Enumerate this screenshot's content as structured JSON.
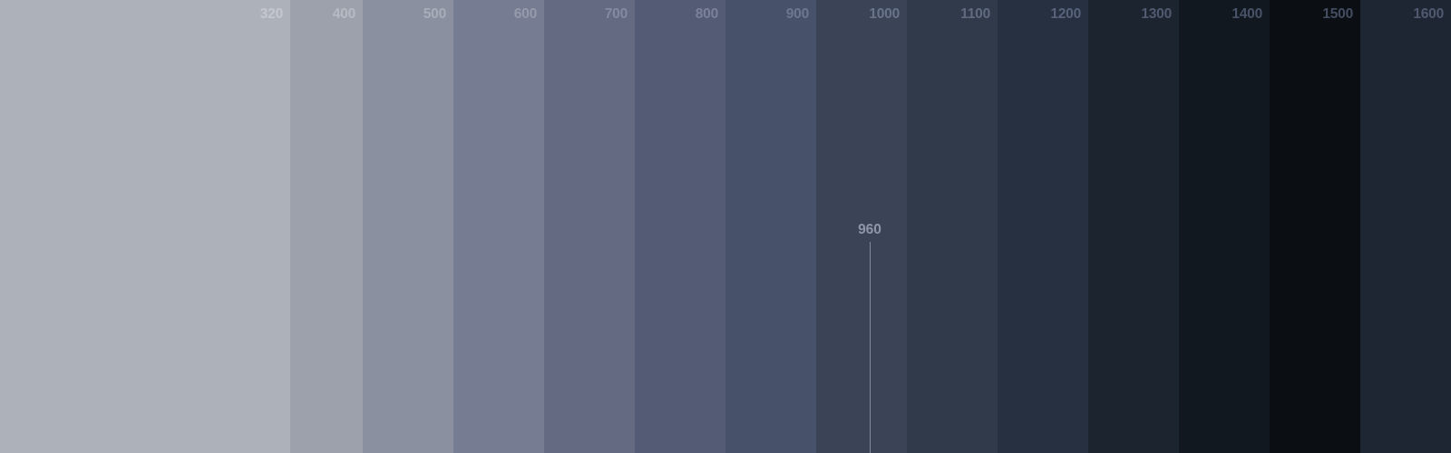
{
  "breakpoints": [
    {
      "label": "320",
      "color": "#adb1b9",
      "label_color": "#c4c7ce"
    },
    {
      "label": "400",
      "color": "#9ca1ac",
      "label_color": "#b6bac3"
    },
    {
      "label": "500",
      "color": "#8a90a0",
      "label_color": "#a8adb9"
    },
    {
      "label": "600",
      "color": "#767c91",
      "label_color": "#959bab"
    },
    {
      "label": "700",
      "color": "#636a82",
      "label_color": "#848aa0"
    },
    {
      "label": "800",
      "color": "#545b74",
      "label_color": "#7a8198"
    },
    {
      "label": "900",
      "color": "#475169",
      "label_color": "#6e7790"
    },
    {
      "label": "1000",
      "color": "#3b4457",
      "label_color": "#69738a"
    },
    {
      "label": "1100",
      "color": "#313a4b",
      "label_color": "#616b80"
    },
    {
      "label": "1200",
      "color": "#263040",
      "label_color": "#58627a"
    },
    {
      "label": "1300",
      "color": "#1c2430",
      "label_color": "#505a70"
    },
    {
      "label": "1400",
      "color": "#111820",
      "label_color": "#485268"
    },
    {
      "label": "1500",
      "color": "#0b0f14",
      "label_color": "#434c61"
    },
    {
      "label": "1600",
      "color": "#1e2633",
      "label_color": "#4f5970"
    }
  ],
  "marker": {
    "label": "960"
  }
}
